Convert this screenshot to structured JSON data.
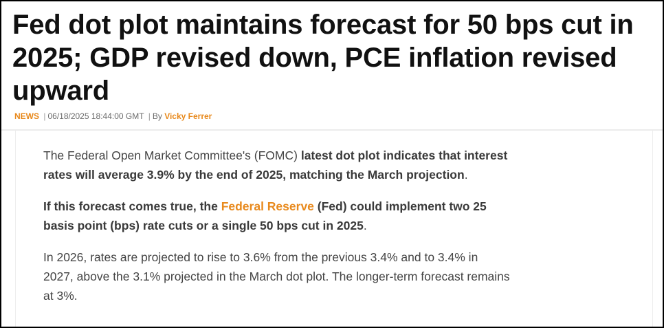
{
  "article": {
    "headline": "Fed dot plot maintains forecast for 50 bps cut in 2025; GDP revised down, PCE inflation revised upward",
    "category": "NEWS",
    "separator": "|",
    "timestamp": "06/18/2025 18:44:00 GMT",
    "by_label": "By",
    "author": "Vicky Ferrer"
  },
  "paragraphs": {
    "p1": {
      "intro": "The Federal Open Market Committee's (FOMC) ",
      "bold": "latest dot plot indicates that interest rates will average 3.9% by the end of 2025, matching the March projection",
      "end": "."
    },
    "p2": {
      "bold_a": "If this forecast comes true, the ",
      "link": "Federal Reserve",
      "bold_b": " (Fed) could implement two 25 basis point (bps) rate cuts or a single 50 bps cut in 2025",
      "end": "."
    },
    "p3": {
      "text": "In 2026, rates are projected to rise to 3.6% from the previous 3.4% and to 3.4% in 2027, above the 3.1% projected in the March dot plot. The longer-term forecast remains at 3%."
    }
  },
  "colors": {
    "accent": "#e8891c",
    "headline": "#111111",
    "body": "#444444"
  }
}
